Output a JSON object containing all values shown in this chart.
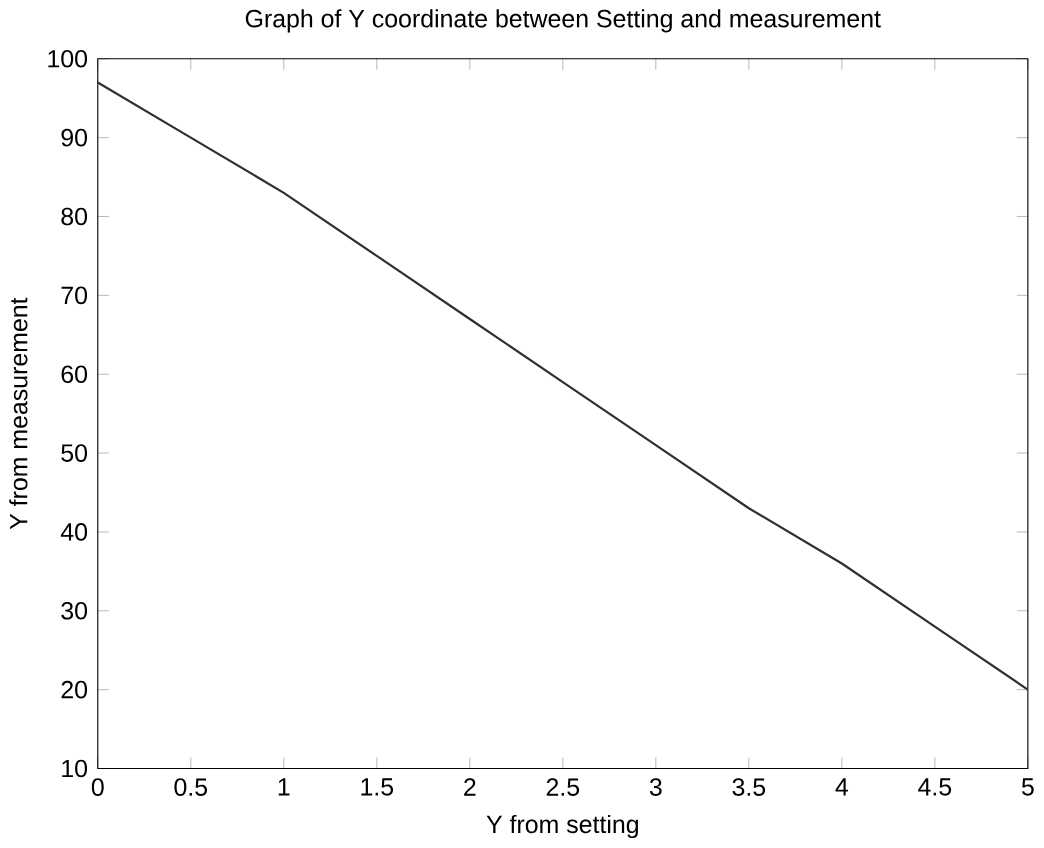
{
  "chart_data": {
    "type": "line",
    "title": "Graph of Y coordinate between Setting and measurement",
    "xlabel": "Y from setting",
    "ylabel": "Y from measurement",
    "x": [
      0,
      0.5,
      1,
      1.5,
      2,
      2.5,
      3,
      3.5,
      4,
      4.5,
      5
    ],
    "series": [
      {
        "color": "#303030",
        "values": [
          97,
          90,
          83,
          75,
          67,
          59,
          51,
          43,
          36,
          28,
          20
        ]
      }
    ],
    "xlim": [
      0,
      5
    ],
    "ylim": [
      10,
      100
    ],
    "xticks": [
      0,
      0.5,
      1,
      1.5,
      2,
      2.5,
      3,
      3.5,
      4,
      4.5,
      5
    ],
    "yticks": [
      10,
      20,
      30,
      40,
      50,
      60,
      70,
      80,
      90,
      100
    ],
    "marker": "none",
    "line_style": "solid"
  }
}
